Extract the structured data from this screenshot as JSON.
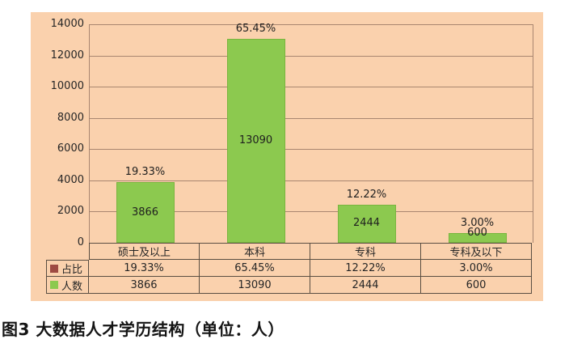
{
  "caption": "图3 大数据人才学历结构（单位：人）",
  "colors": {
    "panel_background": "#FAD1AD",
    "bar_fill": "#8CC94F",
    "bar_border": "#79B53F",
    "gridline": "#A98670",
    "table_border": "#5A4E42",
    "percent_swatch": "#9E4A42",
    "count_swatch": "#8CC94F"
  },
  "chart_data": {
    "type": "bar",
    "title": "",
    "xlabel": "",
    "ylabel": "",
    "categories": [
      "硕士及以上",
      "本科",
      "专科",
      "专科及以下"
    ],
    "series": [
      {
        "name": "占比",
        "values": [
          "19.33%",
          "65.45%",
          "12.22%",
          "3.00%"
        ],
        "swatch_color": "#9E4A42"
      },
      {
        "name": "人数",
        "values": [
          3866,
          13090,
          2444,
          600
        ],
        "swatch_color": "#8CC94F"
      }
    ],
    "bar_series": "人数",
    "bar_percent_labels": [
      "19.33%",
      "65.45%",
      "12.22%",
      "3.00%"
    ],
    "ylim": [
      0,
      14000
    ],
    "yticks": [
      0,
      2000,
      4000,
      6000,
      8000,
      10000,
      12000,
      14000
    ],
    "grid": true,
    "legend_position": "table-left"
  }
}
